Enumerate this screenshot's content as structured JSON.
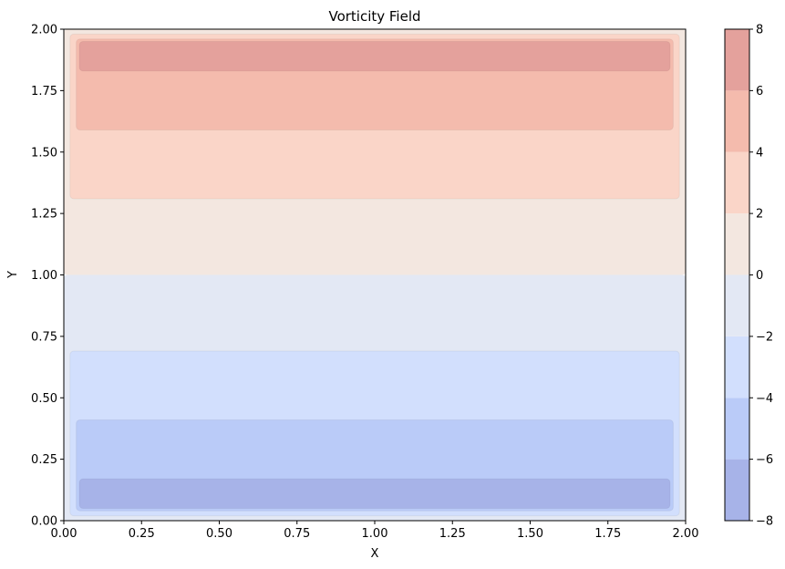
{
  "chart_data": {
    "type": "contourf",
    "title": "Vorticity Field",
    "xlabel": "X",
    "ylabel": "Y",
    "xlim": [
      0.0,
      2.0
    ],
    "ylim": [
      0.0,
      2.0
    ],
    "x_ticks": [
      "0.00",
      "0.25",
      "0.50",
      "0.75",
      "1.00",
      "1.25",
      "1.50",
      "1.75",
      "2.00"
    ],
    "y_ticks": [
      "0.00",
      "0.25",
      "0.50",
      "0.75",
      "1.00",
      "1.25",
      "1.50",
      "1.75",
      "2.00"
    ],
    "colorbar": {
      "levels": [
        -8,
        -6,
        -4,
        -2,
        0,
        2,
        4,
        6,
        8
      ],
      "tick_labels": [
        "−8",
        "−6",
        "−4",
        "−2",
        "0",
        "2",
        "4",
        "6",
        "8"
      ],
      "colors": [
        "#a7b3e8",
        "#bacbf8",
        "#d2dffd",
        "#e3e8f4",
        "#f3e7e0",
        "#fad5c8",
        "#f4bbad",
        "#e4a19c"
      ]
    },
    "contours": [
      {
        "range": [
          -2,
          0
        ],
        "color": "#e3e8f4",
        "x": [
          0.0,
          2.0
        ],
        "y": [
          0.0,
          1.0
        ]
      },
      {
        "range": [
          0,
          2
        ],
        "color": "#f3e7e0",
        "x": [
          0.0,
          2.0
        ],
        "y": [
          1.0,
          2.0
        ]
      },
      {
        "range": [
          -4,
          -2
        ],
        "color": "#d2dffd",
        "x": [
          0.02,
          1.98
        ],
        "y": [
          0.02,
          0.69
        ]
      },
      {
        "range": [
          -6,
          -4
        ],
        "color": "#bacbf8",
        "x": [
          0.04,
          1.96
        ],
        "y": [
          0.04,
          0.41
        ]
      },
      {
        "range": [
          -8,
          -6
        ],
        "color": "#a7b3e8",
        "x": [
          0.05,
          1.95
        ],
        "y": [
          0.05,
          0.17
        ]
      },
      {
        "range": [
          2,
          4
        ],
        "color": "#fad5c8",
        "x": [
          0.02,
          1.98
        ],
        "y": [
          1.31,
          1.98
        ]
      },
      {
        "range": [
          4,
          6
        ],
        "color": "#f4bbad",
        "x": [
          0.04,
          1.96
        ],
        "y": [
          1.59,
          1.96
        ]
      },
      {
        "range": [
          6,
          8
        ],
        "color": "#e4a19c",
        "x": [
          0.05,
          1.95
        ],
        "y": [
          1.83,
          1.95
        ]
      }
    ]
  }
}
